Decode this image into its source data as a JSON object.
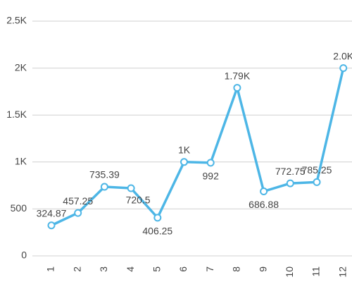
{
  "chart_data": {
    "type": "line",
    "categories": [
      "1",
      "2",
      "3",
      "4",
      "5",
      "6",
      "7",
      "8",
      "9",
      "10",
      "11",
      "12"
    ],
    "values": [
      324.87,
      457.25,
      735.39,
      720.5,
      406.25,
      1000,
      992,
      1790,
      686.88,
      772.75,
      785.25,
      2000
    ],
    "value_labels": [
      "324.87",
      "457.25",
      "735.39",
      "720.5",
      "406.25",
      "1K",
      "992",
      "1.79K",
      "686.88",
      "772.75",
      "785.25",
      "2.0K"
    ],
    "color": "#4db6e6",
    "ylim": [
      0,
      2500
    ],
    "yticks": [
      0,
      500,
      {
        "value": 1000,
        "label": "1K"
      },
      {
        "value": 1500,
        "label": "1.5K"
      },
      {
        "value": 2000,
        "label": "2K"
      },
      {
        "value": 2500,
        "label": "2.5K"
      }
    ],
    "grid": true
  }
}
